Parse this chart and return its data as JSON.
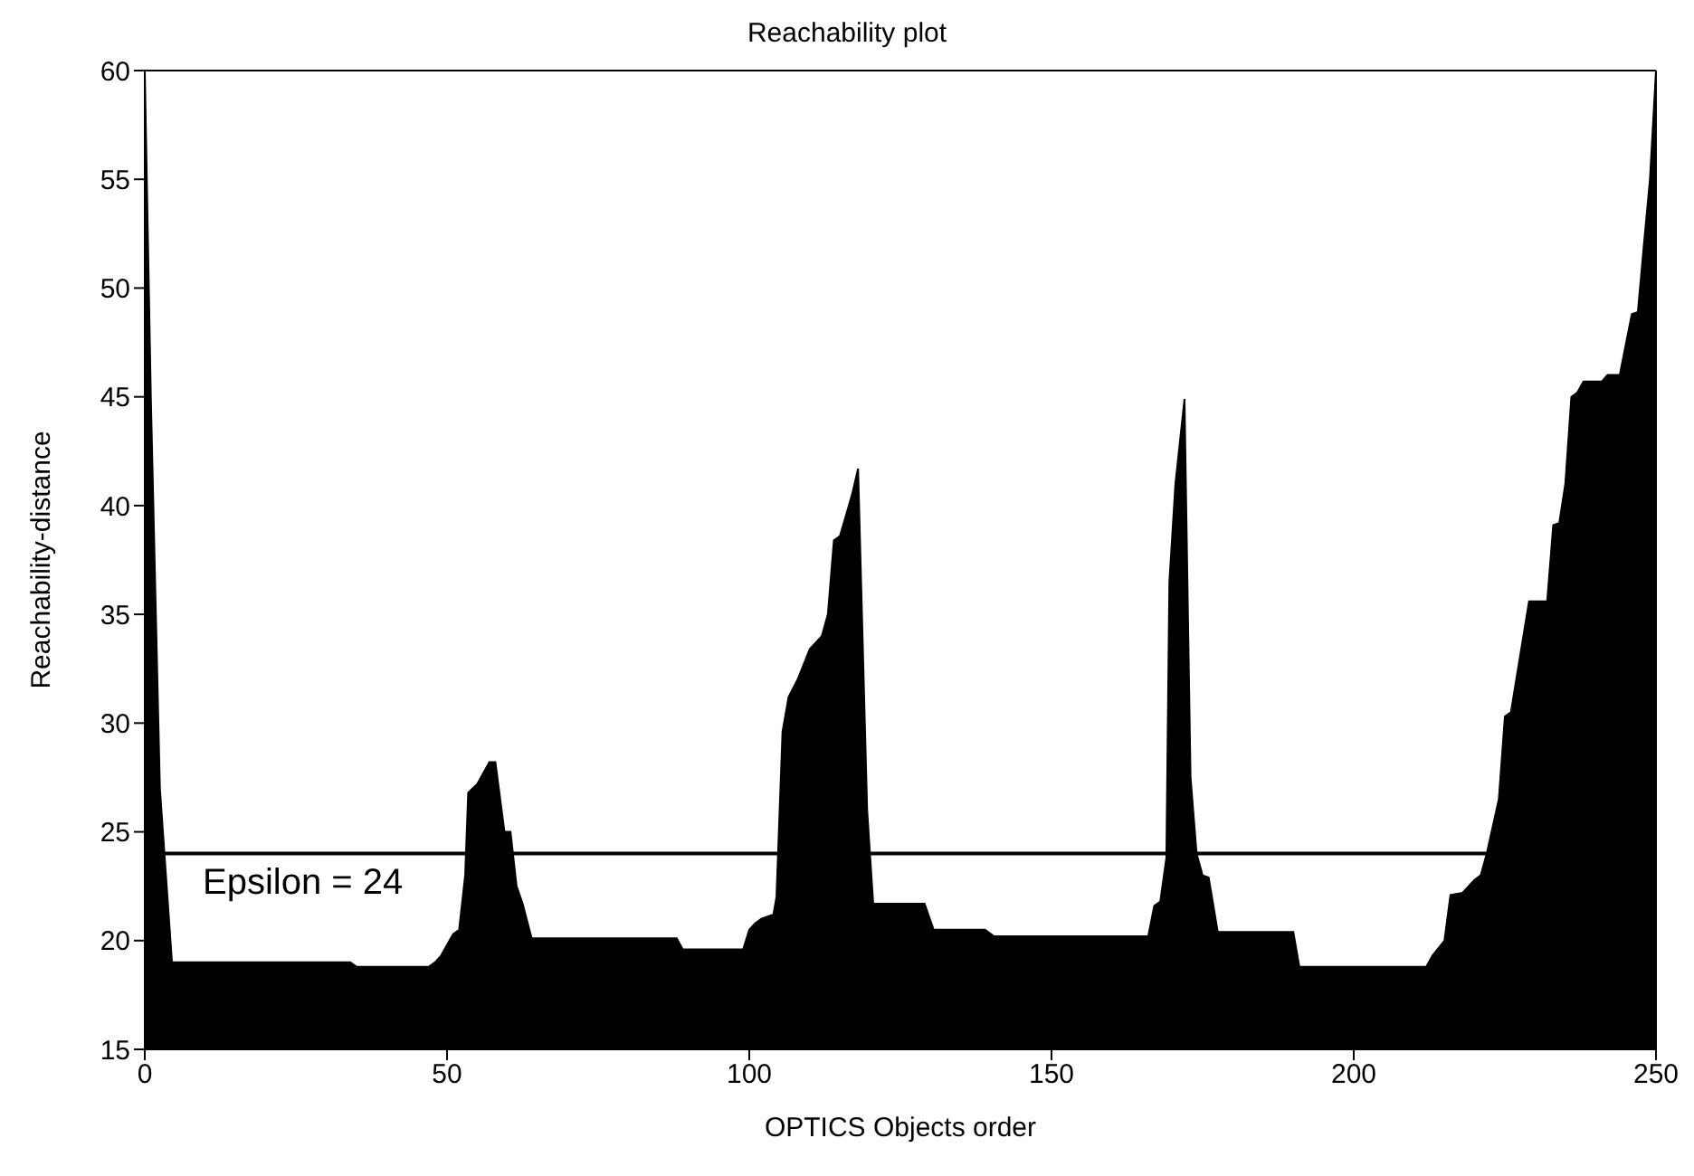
{
  "chart_data": {
    "type": "area",
    "title": "Reachability plot",
    "xlabel": "OPTICS Objects order",
    "ylabel": "Reachability-distance",
    "x": [
      0,
      1,
      2.5,
      4.5,
      34,
      35,
      47,
      48,
      49,
      51,
      52,
      53,
      53.5,
      55,
      57,
      58,
      59.5,
      60.5,
      61.5,
      62.5,
      64,
      88,
      89,
      99,
      100,
      101,
      102,
      104,
      104.5,
      105.5,
      106.5,
      108,
      110,
      112,
      113,
      114,
      115,
      117,
      118,
      119.5,
      120.5,
      129,
      130.5,
      139,
      140.5,
      166,
      167,
      168,
      169,
      169.5,
      170.5,
      172,
      173,
      174,
      175,
      176,
      177.5,
      190,
      191,
      212,
      213,
      215,
      216,
      218,
      220,
      221,
      222,
      224,
      225,
      226,
      229,
      232,
      233,
      234,
      235,
      236,
      237,
      238,
      241,
      242,
      244,
      246,
      247,
      248,
      249,
      250
    ],
    "series": [
      {
        "color": "#000000",
        "values": [
          60,
          45,
          27,
          19,
          19,
          18.8,
          18.8,
          19,
          19.3,
          20.3,
          20.5,
          23,
          26.8,
          27.2,
          28.2,
          28.2,
          25,
          25,
          22.5,
          21.7,
          20.1,
          20.1,
          19.6,
          19.6,
          20.5,
          20.8,
          21,
          21.2,
          22,
          29.6,
          31.2,
          32,
          33.4,
          34,
          35,
          38.4,
          38.6,
          40.5,
          41.7,
          26,
          21.7,
          21.7,
          20.5,
          20.5,
          20.2,
          20.2,
          21.6,
          21.8,
          23.8,
          36.5,
          41,
          44.9,
          27.5,
          24,
          23,
          22.9,
          20.4,
          20.4,
          18.8,
          18.8,
          19.3,
          20,
          22.1,
          22.2,
          22.8,
          23,
          24,
          26.5,
          30.3,
          30.5,
          35.6,
          35.6,
          39.1,
          39.2,
          41,
          45,
          45.2,
          45.7,
          45.7,
          46,
          46,
          48.8,
          48.9,
          52,
          55,
          60
        ]
      }
    ],
    "xlim": [
      0,
      250
    ],
    "xticks": [
      0,
      50,
      100,
      150,
      200,
      250
    ],
    "ylim": [
      15,
      60
    ],
    "yticks": [
      15,
      20,
      25,
      30,
      35,
      40,
      45,
      50,
      55,
      60
    ],
    "ref_lines": [
      {
        "axis": "y",
        "value": 24,
        "label": "Epsilon = 24",
        "color": "#000000"
      }
    ],
    "grid": false,
    "legend": false
  }
}
